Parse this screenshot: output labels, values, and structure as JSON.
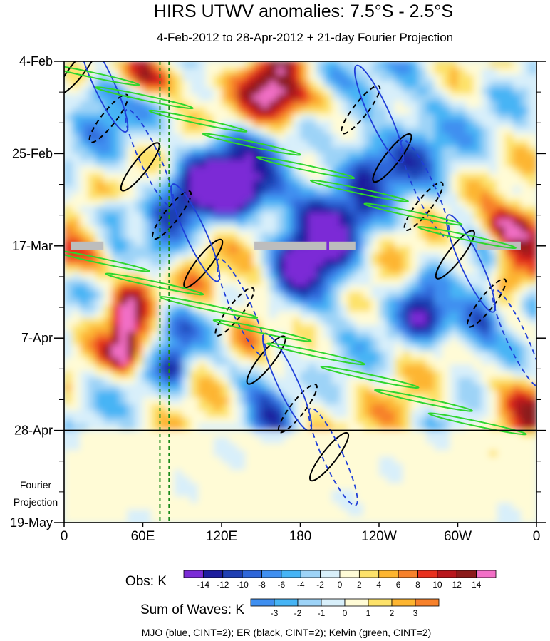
{
  "chart_data": {
    "type": "heatmap",
    "title": "HIRS UTWV anomalies: 7.5°S - 2.5°S",
    "subtitle": "4-Feb-2012 to 28-Apr-2012 + 21-day Fourier Projection",
    "x_ticks": [
      "0",
      "60E",
      "120E",
      "180",
      "120W",
      "60W",
      "0"
    ],
    "x_tick_values": [
      0,
      60,
      120,
      180,
      240,
      300,
      360
    ],
    "x_range": [
      0,
      360
    ],
    "y_ticks": [
      "4-Feb",
      "25-Feb",
      "17-Mar",
      "7-Apr",
      "28-Apr",
      "19-May"
    ],
    "y_tick_days": [
      0,
      21,
      42,
      63,
      84,
      105
    ],
    "y_range_days": [
      0,
      105
    ],
    "projection_start_day": 84,
    "projection_label": [
      "Fourier",
      "Projection"
    ],
    "obs_colorbar": {
      "label": "Obs: K",
      "levels": [
        -14,
        -12,
        -10,
        -8,
        -6,
        -4,
        -2,
        0,
        2,
        4,
        6,
        8,
        10,
        12,
        14
      ],
      "colors": [
        "#7b2cd6",
        "#1e1e9e",
        "#1f3fb3",
        "#2e66d9",
        "#3f8ff0",
        "#46b4f5",
        "#9dd3f7",
        "#d8effa",
        "#fffbd6",
        "#fde26a",
        "#fdb530",
        "#f7812b",
        "#e8301e",
        "#b8161c",
        "#8c1a1a",
        "#f26fc6"
      ]
    },
    "waves_colorbar": {
      "label": "Sum of Waves: K",
      "levels": [
        -3,
        -2,
        -1,
        0,
        1,
        2,
        3
      ],
      "colors": [
        "#3f8ff0",
        "#46b4f5",
        "#9dd3f7",
        "#d8effa",
        "#fffbd6",
        "#fde26a",
        "#fdb530",
        "#f7812b"
      ]
    },
    "legend_text": "MJO (blue, CINT=2); ER (black, CINT=2); Kelvin (green, CINT=2)",
    "series": [
      {
        "name": "MJO",
        "color": "#1f3fd9",
        "cint": 2
      },
      {
        "name": "ER",
        "color": "#000000",
        "cint": 2
      },
      {
        "name": "Kelvin",
        "color": "#2ed62e",
        "cint": 2
      }
    ],
    "missing_data_bars": [
      {
        "lon": [
          5,
          30
        ],
        "day": 42
      },
      {
        "lon": [
          145,
          200
        ],
        "day": 42
      },
      {
        "lon": [
          202,
          222
        ],
        "day": 42
      },
      {
        "lon": [
          315,
          348
        ],
        "day": 42
      }
    ],
    "vertical_markers_lon": [
      73,
      80
    ]
  }
}
